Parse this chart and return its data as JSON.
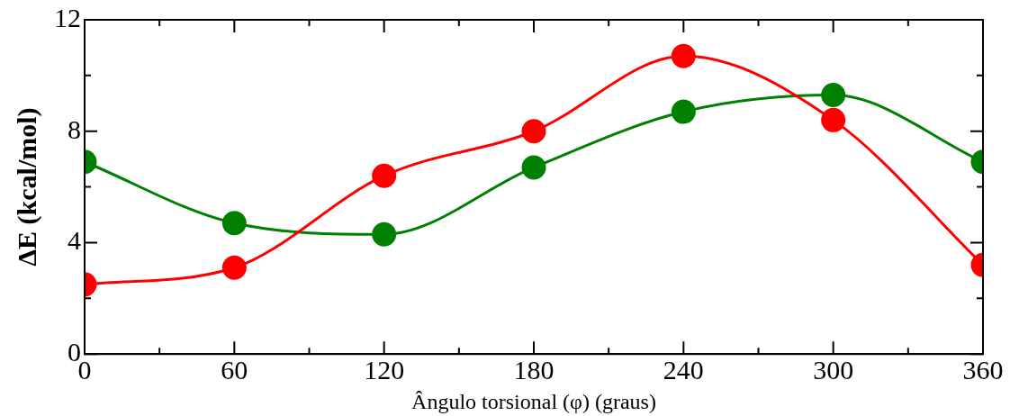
{
  "chart_data": {
    "type": "line",
    "xlabel": "Ângulo torsional (φ) (graus)",
    "ylabel": "ΔE (kcal/mol)",
    "x": [
      0,
      60,
      120,
      180,
      240,
      300,
      360
    ],
    "series": [
      {
        "color": "#ff0000",
        "values": [
          2.5,
          3.1,
          6.4,
          8.0,
          10.7,
          8.4,
          3.2
        ]
      },
      {
        "color": "#008000",
        "values": [
          6.9,
          4.7,
          4.3,
          6.7,
          8.7,
          9.3,
          6.9
        ]
      }
    ],
    "xlim": [
      0,
      360
    ],
    "xticks": [
      0,
      {
        "value": 30,
        "label": null
      },
      60,
      {
        "value": 90,
        "label": null
      },
      120,
      {
        "value": 150,
        "label": null
      },
      180,
      {
        "value": 210,
        "label": null
      },
      240,
      {
        "value": 270,
        "label": null
      },
      300,
      {
        "value": 330,
        "label": null
      },
      360
    ],
    "ylim": [
      0,
      12
    ],
    "yticks": [
      0,
      {
        "value": 2,
        "label": null
      },
      4,
      {
        "value": 6,
        "label": null
      },
      8,
      {
        "value": 10,
        "label": null
      },
      12
    ],
    "legend": false,
    "marker": "circle",
    "line_style": "solid"
  }
}
